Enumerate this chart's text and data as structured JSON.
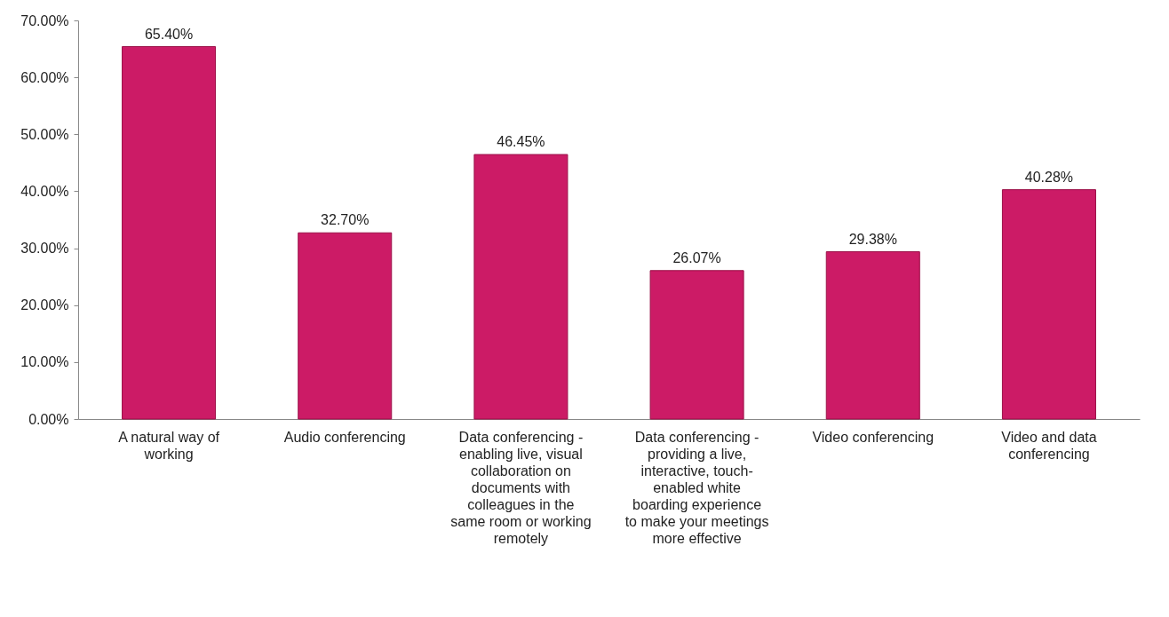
{
  "chart_data": {
    "type": "bar",
    "categories": [
      "A natural way of working",
      "Audio conferencing",
      "Data conferencing - enabling live, visual collaboration on documents with colleagues in the same room or working remotely",
      "Data conferencing - providing a live, interactive, touch-enabled white boarding experience to make your meetings more effective",
      "Video conferencing",
      "Video and data conferencing"
    ],
    "values": [
      65.4,
      32.7,
      46.45,
      26.07,
      29.38,
      40.28
    ],
    "value_labels": [
      "65.40%",
      "32.70%",
      "46.45%",
      "26.07%",
      "29.38%",
      "40.28%"
    ],
    "color": "#cc1b66",
    "ylim": [
      0,
      70
    ],
    "yticks": [
      {
        "value": 0,
        "label": "0.00%"
      },
      {
        "value": 10,
        "label": "10.00%"
      },
      {
        "value": 20,
        "label": "20.00%"
      },
      {
        "value": 30,
        "label": "30.00%"
      },
      {
        "value": 40,
        "label": "40.00%"
      },
      {
        "value": 50,
        "label": "50.00%"
      },
      {
        "value": 60,
        "label": "60.00%"
      },
      {
        "value": 70,
        "label": "70.00%"
      }
    ],
    "grid": false
  }
}
